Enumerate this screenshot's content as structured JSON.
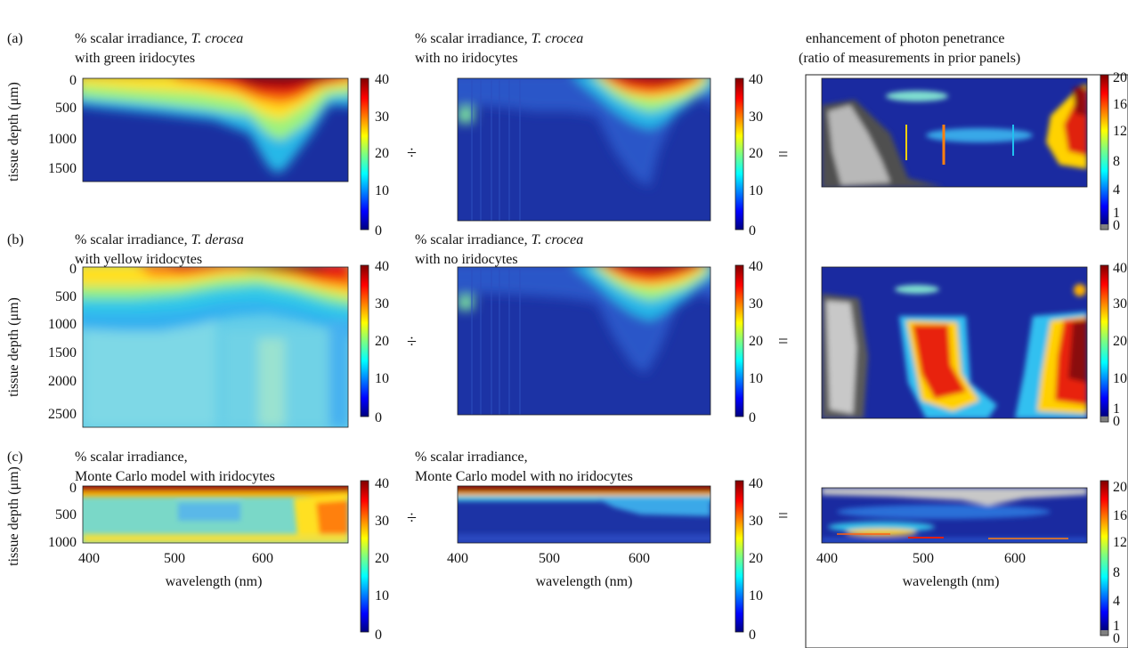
{
  "header": {
    "line1": "enhancement of photon penetrance",
    "line2": "(ratio of measurements in prior panels)"
  },
  "operators": {
    "divide": "÷",
    "equals": "="
  },
  "rows": [
    {
      "letter": "(a)",
      "left": {
        "t1_plain": "% scalar irradiance, ",
        "t1_italic": "T. crocea",
        "t2": "with green iridocytes"
      },
      "mid": {
        "t1_plain": "% scalar irradiance, ",
        "t1_italic": "T. crocea",
        "t2": "with no iridocytes"
      },
      "ylabel": "tissue depth (μm)",
      "yticks": [
        "0",
        "500",
        "1000",
        "1500"
      ],
      "cbar_ticks": [
        "40",
        "30",
        "20",
        "10",
        "0"
      ],
      "ratio_cbar_ticks": [
        "20",
        "16",
        "12",
        "8",
        "4",
        "1",
        "0"
      ]
    },
    {
      "letter": "(b)",
      "left": {
        "t1_plain": "% scalar irradiance, ",
        "t1_italic": "T. derasa",
        "t2": "with yellow iridocytes"
      },
      "mid": {
        "t1_plain": "% scalar irradiance, ",
        "t1_italic": "T. crocea",
        "t2": "with no iridocytes"
      },
      "ylabel": "tissue depth (μm)",
      "yticks": [
        "0",
        "500",
        "1000",
        "1500",
        "2000",
        "2500"
      ],
      "cbar_ticks": [
        "40",
        "30",
        "20",
        "10",
        "0"
      ],
      "ratio_cbar_ticks": [
        "40",
        "30",
        "20",
        "10",
        "1",
        "0"
      ]
    },
    {
      "letter": "(c)",
      "left": {
        "t1": "% scalar irradiance,",
        "t2": "Monte Carlo model with iridocytes"
      },
      "mid": {
        "t1": "% scalar irradiance,",
        "t2": "Monte Carlo model with no iridocytes"
      },
      "ylabel": "tissue depth (μm)",
      "yticks": [
        "0",
        "500",
        "1000"
      ],
      "xticks": [
        "400",
        "500",
        "600"
      ],
      "xlabel": "wavelength (nm)",
      "cbar_ticks": [
        "40",
        "30",
        "20",
        "10",
        "0"
      ],
      "ratio_cbar_ticks": [
        "20",
        "16",
        "12",
        "8",
        "4",
        "1",
        "0"
      ]
    }
  ],
  "colors": {
    "jet": [
      "#00007f",
      "#0000ff",
      "#007fff",
      "#00ffff",
      "#7fff7f",
      "#ffff00",
      "#ff7f00",
      "#ff0000",
      "#7f0000"
    ],
    "gray_low": "#808080"
  },
  "chart_data": [
    {
      "type": "heatmap",
      "title": "% scalar irradiance, T. crocea with green iridocytes",
      "xlabel": "",
      "ylabel": "tissue depth (μm)",
      "xlim": [
        400,
        700
      ],
      "ylim": [
        1800,
        0
      ],
      "colorbar": {
        "min": 0,
        "max": 40,
        "ticks": [
          0,
          10,
          20,
          30,
          40
        ]
      },
      "x": [
        400,
        450,
        500,
        550,
        600,
        650,
        700
      ],
      "y": [
        0,
        500,
        1000,
        1500
      ],
      "z": [
        [
          30,
          25,
          22,
          32,
          40,
          38,
          30
        ],
        [
          12,
          10,
          12,
          22,
          25,
          22,
          15
        ],
        [
          5,
          5,
          6,
          10,
          12,
          10,
          6
        ],
        [
          3,
          3,
          4,
          5,
          6,
          5,
          4
        ]
      ]
    },
    {
      "type": "heatmap",
      "title": "% scalar irradiance, T. crocea with no iridocytes",
      "xlim": [
        400,
        700
      ],
      "ylim": [
        1800,
        0
      ],
      "colorbar": {
        "min": 0,
        "max": 40,
        "ticks": [
          0,
          10,
          20,
          30,
          40
        ]
      },
      "x": [
        400,
        450,
        500,
        550,
        600,
        650,
        700
      ],
      "y": [
        0,
        500,
        1000,
        1500
      ],
      "z": [
        [
          8,
          5,
          6,
          20,
          40,
          35,
          10
        ],
        [
          6,
          3,
          3,
          5,
          12,
          10,
          4
        ],
        [
          2,
          2,
          2,
          3,
          5,
          4,
          2
        ],
        [
          1,
          1,
          1,
          2,
          3,
          2,
          1
        ]
      ]
    },
    {
      "type": "heatmap",
      "title": "enhancement of photon penetrance (ratio of measurements in prior panels)",
      "xlim": [
        400,
        700
      ],
      "ylim": [
        1800,
        0
      ],
      "colorbar": {
        "min": 0,
        "max": 20,
        "ticks": [
          0,
          1,
          4,
          8,
          12,
          16,
          20
        ]
      }
    },
    {
      "type": "heatmap",
      "title": "% scalar irradiance, T. derasa with yellow iridocytes",
      "ylabel": "tissue depth (μm)",
      "xlim": [
        400,
        700
      ],
      "ylim": [
        2800,
        0
      ],
      "colorbar": {
        "min": 0,
        "max": 40,
        "ticks": [
          0,
          10,
          20,
          30,
          40
        ]
      },
      "x": [
        400,
        450,
        500,
        550,
        600,
        650,
        700
      ],
      "y": [
        0,
        500,
        1000,
        1500,
        2000,
        2500
      ],
      "z": [
        [
          30,
          32,
          36,
          40,
          40,
          38,
          30
        ],
        [
          20,
          22,
          28,
          34,
          34,
          30,
          18
        ],
        [
          8,
          10,
          14,
          20,
          20,
          14,
          8
        ],
        [
          7,
          8,
          9,
          10,
          10,
          8,
          6
        ],
        [
          7,
          8,
          9,
          10,
          10,
          8,
          6
        ],
        [
          7,
          8,
          9,
          10,
          10,
          8,
          6
        ]
      ]
    },
    {
      "type": "heatmap",
      "title": "% scalar irradiance, T. crocea with no iridocytes",
      "xlim": [
        400,
        700
      ],
      "ylim": [
        2800,
        0
      ],
      "colorbar": {
        "min": 0,
        "max": 40,
        "ticks": [
          0,
          10,
          20,
          30,
          40
        ]
      },
      "x": [
        400,
        450,
        500,
        550,
        600,
        650,
        700
      ],
      "y": [
        0,
        500,
        1000,
        1500,
        2000,
        2500
      ],
      "z": [
        [
          8,
          5,
          6,
          20,
          40,
          35,
          10
        ],
        [
          6,
          3,
          4,
          10,
          16,
          14,
          4
        ],
        [
          3,
          2,
          2,
          4,
          6,
          5,
          2
        ],
        [
          2,
          1,
          1,
          2,
          3,
          2,
          1
        ],
        [
          1,
          1,
          1,
          1,
          2,
          1,
          1
        ],
        [
          1,
          1,
          1,
          1,
          1,
          1,
          1
        ]
      ]
    },
    {
      "type": "heatmap",
      "title": "enhancement of photon penetrance (ratio of measurements in prior panels)",
      "xlim": [
        400,
        700
      ],
      "ylim": [
        2800,
        0
      ],
      "colorbar": {
        "min": 0,
        "max": 40,
        "ticks": [
          0,
          1,
          10,
          20,
          30,
          40
        ]
      }
    },
    {
      "type": "heatmap",
      "title": "% scalar irradiance, Monte Carlo model with iridocytes",
      "xlabel": "wavelength (nm)",
      "ylabel": "tissue depth (μm)",
      "xlim": [
        400,
        700
      ],
      "ylim": [
        1000,
        0
      ],
      "colorbar": {
        "min": 0,
        "max": 40,
        "ticks": [
          0,
          10,
          20,
          30,
          40
        ]
      },
      "x": [
        400,
        450,
        500,
        550,
        600,
        650,
        700
      ],
      "y": [
        0,
        250,
        500,
        750,
        1000
      ],
      "z": [
        [
          40,
          40,
          40,
          40,
          40,
          40,
          40
        ],
        [
          14,
          14,
          14,
          13,
          14,
          18,
          30
        ],
        [
          13,
          13,
          13,
          12,
          13,
          16,
          26
        ],
        [
          13,
          13,
          13,
          12,
          13,
          16,
          24
        ],
        [
          14,
          14,
          14,
          13,
          14,
          18,
          26
        ]
      ]
    },
    {
      "type": "heatmap",
      "title": "% scalar irradiance, Monte Carlo model with no iridocytes",
      "xlabel": "wavelength (nm)",
      "xlim": [
        400,
        700
      ],
      "ylim": [
        1000,
        0
      ],
      "colorbar": {
        "min": 0,
        "max": 40,
        "ticks": [
          0,
          10,
          20,
          30,
          40
        ]
      },
      "x": [
        400,
        450,
        500,
        550,
        600,
        650,
        700
      ],
      "y": [
        0,
        250,
        500,
        750,
        1000
      ],
      "z": [
        [
          40,
          40,
          40,
          40,
          40,
          40,
          40
        ],
        [
          6,
          6,
          6,
          8,
          10,
          8,
          6
        ],
        [
          3,
          3,
          3,
          4,
          5,
          4,
          3
        ],
        [
          2,
          2,
          2,
          3,
          3,
          3,
          2
        ],
        [
          2,
          2,
          2,
          2,
          2,
          2,
          2
        ]
      ]
    },
    {
      "type": "heatmap",
      "title": "enhancement of photon penetrance (ratio of measurements in prior panels)",
      "xlabel": "wavelength (nm)",
      "xlim": [
        400,
        700
      ],
      "ylim": [
        1000,
        0
      ],
      "colorbar": {
        "min": 0,
        "max": 20,
        "ticks": [
          0,
          1,
          4,
          8,
          12,
          16,
          20
        ]
      }
    }
  ]
}
